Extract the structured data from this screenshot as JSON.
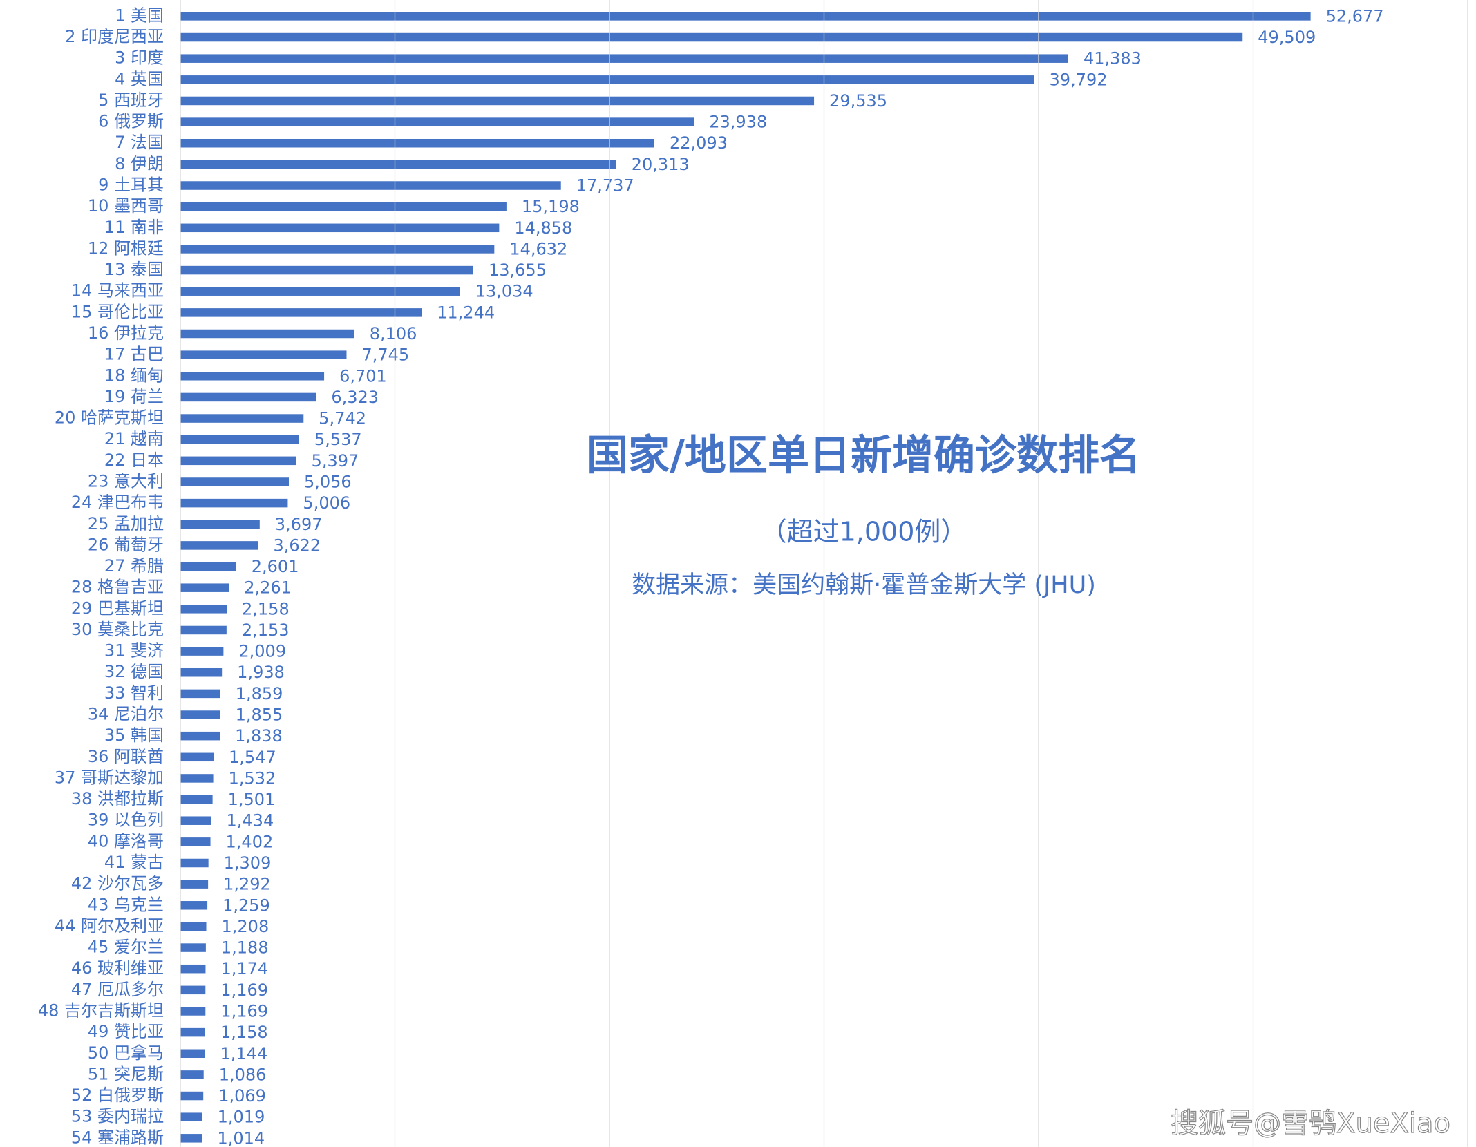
{
  "chart_data": {
    "type": "bar",
    "orientation": "horizontal",
    "title": "国家/地区单日新增确诊数排名",
    "subtitle": "（超过1,000例）",
    "source": "数据来源：美国约翰斯·霍普金斯大学 (JHU)",
    "watermark": "搜狐号@雪鸮XueXiao",
    "categories": [
      "1 美国",
      "2 印度尼西亚",
      "3 印度",
      "4 英国",
      "5 西班牙",
      "6 俄罗斯",
      "7 法国",
      "8 伊朗",
      "9 土耳其",
      "10 墨西哥",
      "11 南非",
      "12 阿根廷",
      "13 泰国",
      "14 马来西亚",
      "15 哥伦比亚",
      "16 伊拉克",
      "17 古巴",
      "18 缅甸",
      "19 荷兰",
      "20 哈萨克斯坦",
      "21 越南",
      "22 日本",
      "23 意大利",
      "24 津巴布韦",
      "25 孟加拉",
      "26 葡萄牙",
      "27 希腊",
      "28 格鲁吉亚",
      "29 巴基斯坦",
      "30 莫桑比克",
      "31 斐济",
      "32 德国",
      "33 智利",
      "34 尼泊尔",
      "35 韩国",
      "36 阿联酋",
      "37 哥斯达黎加",
      "38 洪都拉斯",
      "39 以色列",
      "40 摩洛哥",
      "41 蒙古",
      "42 沙尔瓦多",
      "43 乌克兰",
      "44 阿尔及利亚",
      "45 爱尔兰",
      "46 玻利维亚",
      "47 厄瓜多尔",
      "48 吉尔吉斯斯坦",
      "49 赞比亚",
      "50 巴拿马",
      "51 突尼斯",
      "52 白俄罗斯",
      "53 委内瑞拉",
      "54 塞浦路斯"
    ],
    "values": [
      52677,
      49509,
      41383,
      39792,
      29535,
      23938,
      22093,
      20313,
      17737,
      15198,
      14858,
      14632,
      13655,
      13034,
      11244,
      8106,
      7745,
      6701,
      6323,
      5742,
      5537,
      5397,
      5056,
      5006,
      3697,
      3622,
      2601,
      2261,
      2158,
      2153,
      2009,
      1938,
      1859,
      1855,
      1838,
      1547,
      1532,
      1501,
      1434,
      1402,
      1309,
      1292,
      1259,
      1208,
      1188,
      1174,
      1169,
      1169,
      1158,
      1144,
      1086,
      1069,
      1019,
      1014
    ],
    "value_labels": [
      "52,677",
      "49,509",
      "41,383",
      "39,792",
      "29,535",
      "23,938",
      "22,093",
      "20,313",
      "17,737",
      "15,198",
      "14,858",
      "14,632",
      "13,655",
      "13,034",
      "11,244",
      "8,106",
      "7,745",
      "6,701",
      "6,323",
      "5,742",
      "5,537",
      "5,397",
      "5,056",
      "5,006",
      "3,697",
      "3,622",
      "2,601",
      "2,261",
      "2,158",
      "2,153",
      "2,009",
      "1,938",
      "1,859",
      "1,855",
      "1,838",
      "1,547",
      "1,532",
      "1,501",
      "1,434",
      "1,402",
      "1,309",
      "1,292",
      "1,259",
      "1,208",
      "1,188",
      "1,174",
      "1,169",
      "1,169",
      "1,158",
      "1,144",
      "1,086",
      "1,069",
      "1,019",
      "1,014"
    ],
    "color": "#4472c4",
    "xlim": [
      0,
      60000
    ],
    "xticks": [
      0,
      10000,
      20000,
      30000,
      40000,
      50000,
      60000
    ],
    "grid": true
  }
}
